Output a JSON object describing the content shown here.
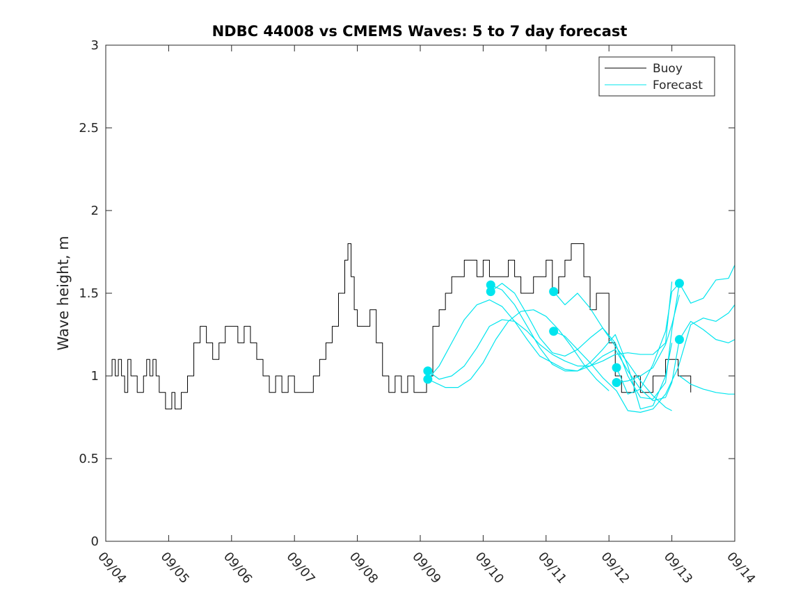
{
  "chart_data": {
    "type": "line",
    "title": "NDBC 44008 vs CMEMS Waves: 5 to 7 day forecast",
    "xlabel": "",
    "ylabel": "Wave height, m",
    "xlim": [
      0,
      10
    ],
    "ylim": [
      0,
      3
    ],
    "yticks": [
      0,
      0.5,
      1,
      1.5,
      2,
      2.5,
      3
    ],
    "ytick_labels": [
      "0",
      "0.5",
      "1",
      "1.5",
      "2",
      "2.5",
      "3"
    ],
    "xticks": [
      0,
      1,
      2,
      3,
      4,
      5,
      6,
      7,
      8,
      9,
      10
    ],
    "xtick_labels": [
      "09/04",
      "09/05",
      "09/06",
      "09/07",
      "09/08",
      "09/09",
      "09/10",
      "09/11",
      "09/12",
      "09/13",
      "09/14"
    ],
    "x_unit": "days since 09/04 00:00",
    "legend": {
      "position": "top-right",
      "entries": [
        {
          "label": "Buoy",
          "color": "#000000"
        },
        {
          "label": "Forecast",
          "color": "#00e5ee"
        }
      ]
    },
    "series": [
      {
        "name": "Buoy",
        "color": "#000000",
        "x": [
          0.0,
          0.1,
          0.15,
          0.2,
          0.25,
          0.3,
          0.35,
          0.4,
          0.5,
          0.6,
          0.65,
          0.7,
          0.75,
          0.8,
          0.85,
          0.95,
          1.0,
          1.05,
          1.1,
          1.2,
          1.3,
          1.4,
          1.5,
          1.6,
          1.7,
          1.8,
          1.9,
          2.0,
          2.1,
          2.2,
          2.3,
          2.4,
          2.5,
          2.6,
          2.7,
          2.8,
          2.9,
          3.0,
          3.1,
          3.2,
          3.3,
          3.4,
          3.5,
          3.6,
          3.7,
          3.8,
          3.85,
          3.9,
          3.95,
          4.0,
          4.1,
          4.2,
          4.3,
          4.4,
          4.5,
          4.6,
          4.7,
          4.8,
          4.9,
          5.0,
          5.1,
          5.2,
          5.3,
          5.4,
          5.5,
          5.6,
          5.7,
          5.8,
          5.9,
          6.0,
          6.1,
          6.2,
          6.3,
          6.4,
          6.5,
          6.6,
          6.7,
          6.8,
          6.9,
          7.0,
          7.1,
          7.2,
          7.3,
          7.4,
          7.5,
          7.6,
          7.7,
          7.8,
          7.9,
          8.0,
          8.1,
          8.2,
          8.3,
          8.4,
          8.5,
          8.6,
          8.7,
          8.8,
          8.9,
          9.0,
          9.1,
          9.2,
          9.3
        ],
        "y": [
          1.0,
          1.1,
          1.0,
          1.1,
          1.0,
          0.9,
          1.1,
          1.0,
          0.9,
          1.0,
          1.1,
          1.0,
          1.1,
          1.0,
          0.9,
          0.8,
          0.8,
          0.9,
          0.8,
          0.9,
          1.0,
          1.2,
          1.3,
          1.2,
          1.1,
          1.2,
          1.3,
          1.3,
          1.2,
          1.3,
          1.2,
          1.1,
          1.0,
          0.9,
          1.0,
          0.9,
          1.0,
          0.9,
          0.9,
          0.9,
          1.0,
          1.1,
          1.2,
          1.3,
          1.5,
          1.7,
          1.8,
          1.6,
          1.4,
          1.3,
          1.3,
          1.4,
          1.2,
          1.0,
          0.9,
          1.0,
          0.9,
          1.0,
          0.9,
          0.9,
          1.0,
          1.3,
          1.4,
          1.5,
          1.6,
          1.6,
          1.7,
          1.7,
          1.6,
          1.7,
          1.6,
          1.6,
          1.6,
          1.7,
          1.6,
          1.5,
          1.5,
          1.6,
          1.6,
          1.7,
          1.5,
          1.6,
          1.7,
          1.8,
          1.8,
          1.6,
          1.4,
          1.5,
          1.5,
          1.2,
          1.0,
          0.9,
          0.9,
          1.0,
          0.9,
          0.9,
          1.0,
          1.0,
          1.1,
          1.1,
          1.0,
          1.0,
          0.9
        ]
      },
      {
        "name": "Forecast 1",
        "color": "#00e5ee",
        "x": [
          5.12,
          5.4,
          5.6,
          5.8,
          6.0,
          6.2,
          6.4,
          6.6,
          6.8,
          7.0,
          7.2,
          7.4,
          7.6,
          7.8,
          8.0
        ],
        "y": [
          0.98,
          0.93,
          0.93,
          0.98,
          1.08,
          1.22,
          1.33,
          1.39,
          1.4,
          1.36,
          1.28,
          1.18,
          1.07,
          0.98,
          0.91
        ]
      },
      {
        "name": "Forecast 2",
        "color": "#00e5ee",
        "x": [
          5.12,
          5.3,
          5.5,
          5.7,
          5.9,
          6.1,
          6.3,
          6.5,
          6.7,
          6.9,
          7.1,
          7.3,
          7.5,
          7.7,
          7.9,
          8.1,
          8.3,
          8.5,
          8.7,
          8.9,
          9.0
        ],
        "y": [
          1.03,
          0.98,
          1.0,
          1.06,
          1.17,
          1.3,
          1.34,
          1.33,
          1.27,
          1.19,
          1.13,
          1.09,
          1.06,
          1.06,
          1.09,
          1.13,
          1.14,
          1.13,
          1.13,
          1.2,
          1.57
        ]
      },
      {
        "name": "Forecast 3",
        "color": "#00e5ee",
        "x": [
          5.12,
          5.3,
          5.5,
          5.7,
          5.9,
          6.1,
          6.3,
          6.5,
          6.7,
          6.9,
          7.1,
          7.3,
          7.5,
          7.7,
          7.9,
          8.1,
          8.3,
          8.5,
          8.7,
          8.9,
          9.0,
          9.12
        ],
        "y": [
          0.98,
          1.06,
          1.2,
          1.34,
          1.43,
          1.46,
          1.42,
          1.33,
          1.22,
          1.12,
          1.08,
          1.04,
          1.03,
          1.06,
          1.12,
          1.16,
          1.03,
          0.92,
          0.85,
          0.87,
          0.96,
          1.22
        ]
      },
      {
        "name": "Forecast 4",
        "color": "#00e5ee",
        "x": [
          6.12,
          6.3,
          6.5,
          6.7,
          6.9,
          7.1,
          7.3,
          7.5,
          7.7,
          7.9,
          8.1,
          8.3,
          8.5,
          8.7,
          8.9,
          9.0,
          9.12
        ],
        "y": [
          1.51,
          1.56,
          1.5,
          1.37,
          1.23,
          1.14,
          1.12,
          1.16,
          1.23,
          1.29,
          1.2,
          1.0,
          0.87,
          0.86,
          0.96,
          1.28,
          1.56
        ]
      },
      {
        "name": "Forecast 5",
        "color": "#00e5ee",
        "x": [
          6.12,
          6.3,
          6.5,
          6.7,
          6.9,
          7.1,
          7.3,
          7.5,
          7.7,
          7.9,
          8.1,
          8.3,
          8.5,
          8.7,
          8.9,
          9.0
        ],
        "y": [
          1.55,
          1.52,
          1.43,
          1.3,
          1.17,
          1.07,
          1.03,
          1.03,
          1.08,
          1.16,
          1.25,
          1.06,
          0.8,
          0.82,
          1.0,
          1.2
        ]
      },
      {
        "name": "Forecast 6",
        "color": "#00e5ee",
        "x": [
          7.12,
          7.3,
          7.5,
          7.7,
          7.9,
          8.1,
          8.3,
          8.5,
          8.7,
          8.9,
          9.0
        ],
        "y": [
          1.51,
          1.43,
          1.5,
          1.41,
          1.29,
          1.18,
          1.08,
          0.97,
          0.88,
          0.81,
          0.79
        ]
      },
      {
        "name": "Forecast 7",
        "color": "#00e5ee",
        "x": [
          7.12,
          7.3,
          7.5,
          7.7,
          7.9,
          8.12,
          8.3,
          8.5,
          8.7,
          8.9,
          9.1,
          9.3,
          9.5,
          9.7,
          9.9,
          10.0
        ],
        "y": [
          1.27,
          1.24,
          1.16,
          1.08,
          0.99,
          0.91,
          0.79,
          0.78,
          0.8,
          0.89,
          1.05,
          1.31,
          1.35,
          1.33,
          1.38,
          1.43
        ]
      },
      {
        "name": "Forecast 8",
        "color": "#00e5ee",
        "x": [
          8.12,
          8.3,
          8.5,
          8.7,
          8.9,
          9.0,
          9.12
        ],
        "y": [
          1.05,
          0.89,
          0.92,
          1.07,
          1.27,
          1.51,
          1.56
        ]
      },
      {
        "name": "Forecast 9",
        "color": "#00e5ee",
        "x": [
          8.12,
          8.3,
          8.5,
          8.7,
          8.9,
          9.0,
          9.12
        ],
        "y": [
          0.96,
          0.97,
          1.0,
          1.05,
          1.19,
          1.31,
          1.49
        ]
      },
      {
        "name": "Forecast 10",
        "color": "#00e5ee",
        "x": [
          9.12,
          9.3,
          9.5,
          9.7,
          9.9,
          10.0
        ],
        "y": [
          1.56,
          1.44,
          1.47,
          1.58,
          1.59,
          1.67
        ]
      },
      {
        "name": "Forecast 11",
        "color": "#00e5ee",
        "x": [
          9.12,
          9.3,
          9.5,
          9.7,
          9.9,
          10.0
        ],
        "y": [
          1.22,
          1.33,
          1.28,
          1.22,
          1.2,
          1.22
        ]
      },
      {
        "name": "Forecast 12",
        "color": "#00e5ee",
        "x": [
          9.12,
          9.3,
          9.5,
          9.7,
          9.9,
          10.0
        ],
        "y": [
          1.0,
          0.95,
          0.92,
          0.9,
          0.89,
          0.89
        ]
      }
    ],
    "markers": {
      "name": "Forecast start points",
      "color": "#00e5ee",
      "points": [
        {
          "x": 5.12,
          "y": 1.03
        },
        {
          "x": 5.12,
          "y": 0.98
        },
        {
          "x": 6.12,
          "y": 1.55
        },
        {
          "x": 6.12,
          "y": 1.51
        },
        {
          "x": 7.12,
          "y": 1.51
        },
        {
          "x": 7.12,
          "y": 1.27
        },
        {
          "x": 8.12,
          "y": 1.05
        },
        {
          "x": 8.12,
          "y": 0.96
        },
        {
          "x": 9.12,
          "y": 1.56
        },
        {
          "x": 9.12,
          "y": 1.22
        }
      ]
    }
  }
}
